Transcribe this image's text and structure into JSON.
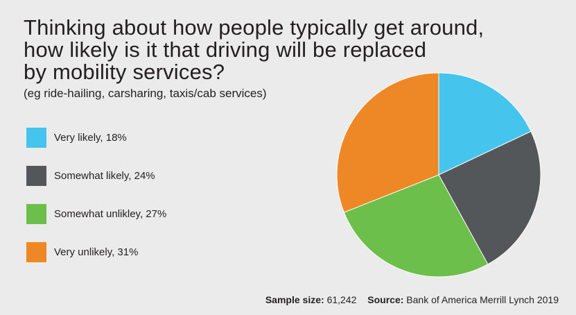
{
  "title_lines": [
    "Thinking about how people typically get around,",
    "how likely is it that driving will be replaced",
    "by mobility services?"
  ],
  "subtitle": "(eg ride-hailing, carsharing, taxis/cab services)",
  "footer": {
    "sample_label": "Sample size:",
    "sample_value": "61,242",
    "source_label": "Source:",
    "source_value": "Bank of America Merrill Lynch 2019"
  },
  "chart_data": {
    "type": "pie",
    "title": "Thinking about how people typically get around, how likely is it that driving will be replaced by mobility services?",
    "subtitle": "(eg ride-hailing, carsharing, taxis/cab services)",
    "legend_position": "left",
    "start_angle_deg": 0,
    "direction": "clockwise",
    "slices": [
      {
        "label": "Very likely, 18%",
        "category": "Very likely",
        "value": 18,
        "color": "#45c4ee"
      },
      {
        "label": "Somewhat likely, 24%",
        "category": "Somewhat likely",
        "value": 24,
        "color": "#54575a"
      },
      {
        "label": "Somewhat unlikley, 27%",
        "category": "Somewhat unlikley",
        "value": 27,
        "color": "#6cbf4b"
      },
      {
        "label": "Very unlikely, 31%",
        "category": "Very unlikely",
        "value": 31,
        "color": "#ee8826"
      }
    ]
  }
}
